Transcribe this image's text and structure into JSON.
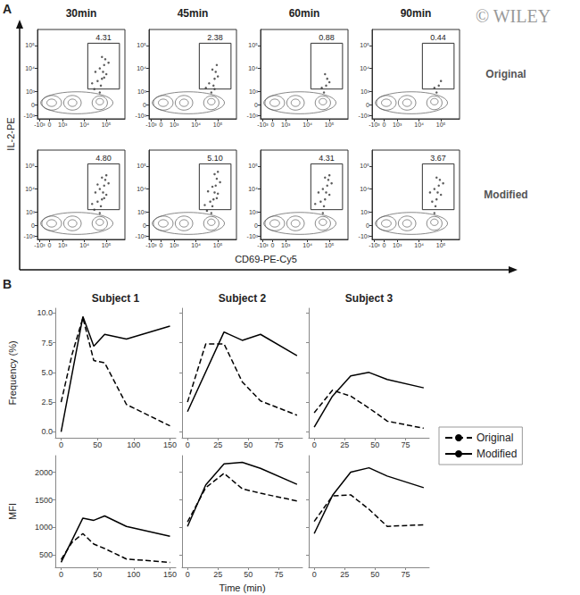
{
  "figure": {
    "watermark": "© WILEY",
    "panels": [
      {
        "label": "A",
        "column_titles": [
          "30min",
          "45min",
          "60min",
          "90min"
        ],
        "row_labels": [
          "Original",
          "Modified"
        ],
        "x_label": "CD69-PE-Cy5",
        "y_label": "IL-2-PE",
        "xlim": [
          -0.55,
          3.45
        ],
        "ylim": [
          -0.6,
          3.3
        ],
        "xticks": [
          {
            "value": -0.45,
            "label": "-10³"
          },
          0,
          {
            "value": 0.6,
            "label": "10³"
          },
          {
            "value": 1.6,
            "label": "10⁴"
          },
          {
            "value": 2.6,
            "label": "10⁵"
          }
        ],
        "yticks": [
          {
            "value": -0.45,
            "label": "-10³"
          },
          0,
          {
            "value": 0.6,
            "label": "10³"
          },
          {
            "value": 1.6,
            "label": "10⁴"
          },
          {
            "value": 2.6,
            "label": "10⁵"
          }
        ],
        "contours": [
          {
            "cx": 0.1,
            "cy": 0.1,
            "rx": 0.45,
            "ry": 0.32
          },
          {
            "cx": 0.1,
            "cy": 0.1,
            "rx": 0.22,
            "ry": 0.16
          },
          {
            "cx": 1.05,
            "cy": 0.1,
            "rx": 0.4,
            "ry": 0.32
          },
          {
            "cx": 1.05,
            "cy": 0.1,
            "rx": 0.2,
            "ry": 0.16
          },
          {
            "cx": 2.3,
            "cy": 0.1,
            "rx": 0.35,
            "ry": 0.3
          },
          {
            "cx": 2.3,
            "cy": 0.15,
            "rx": 0.17,
            "ry": 0.14
          },
          {
            "cx": 1.25,
            "cy": 0.1,
            "rx": 1.65,
            "ry": 0.48
          }
        ]
      },
      {
        "label": "B",
        "column_titles": [
          "Subject 1",
          "Subject 2",
          "Subject 3"
        ],
        "row_labels": [
          "Frequency (%)",
          "MFI"
        ],
        "x_label": "Time (min)",
        "legend": "right"
      }
    ]
  },
  "chart_data": [
    {
      "type": "contour",
      "gate": {
        "x": [
          1.75,
          3.2
        ],
        "y": [
          0.7,
          2.7
        ]
      },
      "gate_label": "4.31",
      "events": [
        [
          2.3,
          0.55
        ],
        [
          2.35,
          0.85
        ],
        [
          2.4,
          1.15
        ],
        [
          2.45,
          1.45
        ],
        [
          2.5,
          1.75
        ],
        [
          2.55,
          2.0
        ],
        [
          2.2,
          1.05
        ],
        [
          2.6,
          1.35
        ],
        [
          1.95,
          0.95
        ],
        [
          2.1,
          1.45
        ],
        [
          2.7,
          1.85
        ],
        [
          2.4,
          2.1
        ],
        [
          2.05,
          0.7
        ],
        [
          2.3,
          1.6
        ],
        [
          2.5,
          1.2
        ]
      ]
    },
    {
      "type": "contour",
      "gate": {
        "x": [
          1.75,
          3.2
        ],
        "y": [
          0.7,
          2.7
        ]
      },
      "gate_label": "2.38",
      "events": [
        [
          2.3,
          0.55
        ],
        [
          2.4,
          0.85
        ],
        [
          2.45,
          1.15
        ],
        [
          2.5,
          1.45
        ],
        [
          2.55,
          1.75
        ],
        [
          2.2,
          0.95
        ],
        [
          2.6,
          1.25
        ],
        [
          2.05,
          0.75
        ],
        [
          2.35,
          1.55
        ],
        [
          2.45,
          0.7
        ]
      ]
    },
    {
      "type": "contour",
      "gate": {
        "x": [
          1.75,
          3.2
        ],
        "y": [
          0.7,
          2.7
        ]
      },
      "gate_label": "0.88",
      "events": [
        [
          2.35,
          0.55
        ],
        [
          2.45,
          0.85
        ],
        [
          2.5,
          1.15
        ],
        [
          2.25,
          0.75
        ],
        [
          2.6,
          1.0
        ],
        [
          2.4,
          1.35
        ]
      ]
    },
    {
      "type": "contour",
      "gate": {
        "x": [
          1.75,
          3.2
        ],
        "y": [
          0.7,
          2.7
        ]
      },
      "gate_label": "0.44",
      "events": [
        [
          2.4,
          0.55
        ],
        [
          2.5,
          0.85
        ],
        [
          2.3,
          0.75
        ],
        [
          2.6,
          1.05
        ]
      ]
    },
    {
      "type": "contour",
      "gate": {
        "x": [
          1.75,
          3.2
        ],
        "y": [
          0.7,
          2.7
        ]
      },
      "gate_label": "4.80",
      "events": [
        [
          2.3,
          0.55
        ],
        [
          2.35,
          0.85
        ],
        [
          2.4,
          1.15
        ],
        [
          2.45,
          1.45
        ],
        [
          2.5,
          1.75
        ],
        [
          2.55,
          2.0
        ],
        [
          2.2,
          1.05
        ],
        [
          2.6,
          1.35
        ],
        [
          1.95,
          0.95
        ],
        [
          2.1,
          1.45
        ],
        [
          2.7,
          1.85
        ],
        [
          2.4,
          2.1
        ],
        [
          2.05,
          0.7
        ],
        [
          2.3,
          1.6
        ],
        [
          2.5,
          1.2
        ],
        [
          2.2,
          1.8
        ],
        [
          2.6,
          2.2
        ]
      ]
    },
    {
      "type": "contour",
      "gate": {
        "x": [
          1.75,
          3.2
        ],
        "y": [
          0.7,
          2.7
        ]
      },
      "gate_label": "5.10",
      "events": [
        [
          2.3,
          0.55
        ],
        [
          2.35,
          0.85
        ],
        [
          2.4,
          1.15
        ],
        [
          2.45,
          1.45
        ],
        [
          2.5,
          1.75
        ],
        [
          2.55,
          2.05
        ],
        [
          2.25,
          1.05
        ],
        [
          2.6,
          1.4
        ],
        [
          2.0,
          0.9
        ],
        [
          2.15,
          1.5
        ],
        [
          2.7,
          1.9
        ],
        [
          2.45,
          2.25
        ],
        [
          2.1,
          0.65
        ],
        [
          2.35,
          1.7
        ],
        [
          2.55,
          1.2
        ],
        [
          2.6,
          2.35
        ]
      ]
    },
    {
      "type": "contour",
      "gate": {
        "x": [
          1.75,
          3.2
        ],
        "y": [
          0.7,
          2.7
        ]
      },
      "gate_label": "4.31",
      "events": [
        [
          2.3,
          0.55
        ],
        [
          2.35,
          0.85
        ],
        [
          2.4,
          1.15
        ],
        [
          2.45,
          1.45
        ],
        [
          2.5,
          1.75
        ],
        [
          2.55,
          2.0
        ],
        [
          2.2,
          1.05
        ],
        [
          2.6,
          1.35
        ],
        [
          1.95,
          0.95
        ],
        [
          2.1,
          1.45
        ],
        [
          2.7,
          1.85
        ],
        [
          2.4,
          2.1
        ],
        [
          2.3,
          1.6
        ],
        [
          2.6,
          2.2
        ]
      ]
    },
    {
      "type": "contour",
      "gate": {
        "x": [
          1.75,
          3.2
        ],
        "y": [
          0.7,
          2.7
        ]
      },
      "gate_label": "3.67",
      "events": [
        [
          2.3,
          0.55
        ],
        [
          2.35,
          0.85
        ],
        [
          2.4,
          1.15
        ],
        [
          2.45,
          1.45
        ],
        [
          2.5,
          1.75
        ],
        [
          2.55,
          2.0
        ],
        [
          2.2,
          1.05
        ],
        [
          2.6,
          1.35
        ],
        [
          2.1,
          1.45
        ],
        [
          2.7,
          1.85
        ],
        [
          2.4,
          2.1
        ],
        [
          2.3,
          1.6
        ]
      ]
    },
    {
      "type": "line",
      "xlim": [
        -8,
        158
      ],
      "xticks": [
        0,
        50,
        100,
        150
      ],
      "ylim": [
        -0.5,
        10.4
      ],
      "yticks": [
        {
          "value": 0,
          "label": "0.0"
        },
        2.5,
        {
          "value": 5,
          "label": "5.0"
        },
        7.5,
        {
          "value": 10,
          "label": "10.0"
        }
      ],
      "grid": false,
      "series": [
        {
          "name": "Original",
          "color": "#000000",
          "line_style": "dashed",
          "x": [
            0,
            15,
            30,
            45,
            60,
            90,
            150
          ],
          "values": [
            2.5,
            6.5,
            9.6,
            6.0,
            5.8,
            2.3,
            0.5
          ]
        },
        {
          "name": "Modified",
          "color": "#000000",
          "line_style": "solid",
          "x": [
            0,
            30,
            45,
            60,
            90,
            150
          ],
          "values": [
            0.0,
            9.7,
            7.2,
            8.2,
            7.8,
            8.9
          ]
        }
      ]
    },
    {
      "type": "line",
      "xlim": [
        -4.5,
        94.5
      ],
      "xticks": [
        0,
        25,
        50,
        75
      ],
      "ylim": [
        -0.5,
        10.4
      ],
      "yticks": [
        {
          "value": 0,
          "label": "0.0"
        },
        2.5,
        {
          "value": 5,
          "label": "5.0"
        },
        7.5,
        {
          "value": 10,
          "label": "10.0"
        }
      ],
      "grid": false,
      "tick_labels": "x",
      "series": [
        {
          "name": "Original",
          "color": "#000000",
          "line_style": "dashed",
          "x": [
            0,
            15,
            30,
            45,
            60,
            90
          ],
          "values": [
            2.5,
            7.4,
            7.4,
            4.2,
            2.6,
            1.4
          ]
        },
        {
          "name": "Modified",
          "color": "#000000",
          "line_style": "solid",
          "x": [
            0,
            30,
            45,
            60,
            90
          ],
          "values": [
            1.7,
            8.4,
            7.7,
            8.2,
            6.4
          ]
        }
      ]
    },
    {
      "type": "line",
      "xlim": [
        -4.5,
        94.5
      ],
      "xticks": [
        0,
        25,
        50,
        75
      ],
      "ylim": [
        -0.5,
        10.4
      ],
      "yticks": [
        {
          "value": 0,
          "label": "0.0"
        },
        2.5,
        {
          "value": 5,
          "label": "5.0"
        },
        7.5,
        {
          "value": 10,
          "label": "10.0"
        }
      ],
      "grid": false,
      "tick_labels": "x",
      "series": [
        {
          "name": "Original",
          "color": "#000000",
          "line_style": "dashed",
          "x": [
            0,
            15,
            30,
            45,
            60,
            90
          ],
          "values": [
            1.6,
            3.5,
            3.0,
            2.0,
            0.9,
            0.3
          ]
        },
        {
          "name": "Modified",
          "color": "#000000",
          "line_style": "solid",
          "x": [
            0,
            15,
            30,
            45,
            60,
            90
          ],
          "values": [
            0.4,
            3.0,
            4.7,
            5.0,
            4.4,
            3.7
          ]
        }
      ]
    },
    {
      "type": "line",
      "xlim": [
        -8,
        158
      ],
      "xticks": [
        0,
        50,
        100,
        150
      ],
      "ylim": [
        280,
        2300
      ],
      "yticks": [
        500,
        1000,
        1500,
        2000
      ],
      "grid": false,
      "series": [
        {
          "name": "Original",
          "color": "#000000",
          "line_style": "dashed",
          "x": [
            0,
            15,
            30,
            45,
            60,
            90,
            150
          ],
          "values": [
            420,
            730,
            890,
            700,
            620,
            430,
            370
          ]
        },
        {
          "name": "Modified",
          "color": "#000000",
          "line_style": "solid",
          "x": [
            0,
            30,
            45,
            60,
            90,
            150
          ],
          "values": [
            370,
            1170,
            1130,
            1210,
            1020,
            840
          ]
        }
      ]
    },
    {
      "type": "line",
      "xlim": [
        -4.5,
        94.5
      ],
      "xticks": [
        0,
        25,
        50,
        75
      ],
      "ylim": [
        280,
        2300
      ],
      "yticks": [
        500,
        1000,
        1500,
        2000
      ],
      "grid": false,
      "tick_labels": "x",
      "series": [
        {
          "name": "Original",
          "color": "#000000",
          "line_style": "dashed",
          "x": [
            0,
            15,
            30,
            45,
            60,
            90
          ],
          "values": [
            1100,
            1720,
            1980,
            1700,
            1620,
            1480
          ]
        },
        {
          "name": "Modified",
          "color": "#000000",
          "line_style": "solid",
          "x": [
            0,
            15,
            30,
            45,
            60,
            90
          ],
          "values": [
            1020,
            1770,
            2150,
            2180,
            2070,
            1780
          ]
        }
      ]
    },
    {
      "type": "line",
      "xlim": [
        -4.5,
        94.5
      ],
      "xticks": [
        0,
        25,
        50,
        75
      ],
      "ylim": [
        280,
        2300
      ],
      "yticks": [
        500,
        1000,
        1500,
        2000
      ],
      "grid": false,
      "tick_labels": "x",
      "series": [
        {
          "name": "Original",
          "color": "#000000",
          "line_style": "dashed",
          "x": [
            0,
            15,
            30,
            45,
            60,
            90
          ],
          "values": [
            1110,
            1570,
            1590,
            1330,
            1020,
            1050
          ]
        },
        {
          "name": "Modified",
          "color": "#000000",
          "line_style": "solid",
          "x": [
            0,
            15,
            30,
            45,
            60,
            90
          ],
          "values": [
            890,
            1580,
            2000,
            2080,
            1930,
            1720
          ]
        }
      ]
    }
  ]
}
